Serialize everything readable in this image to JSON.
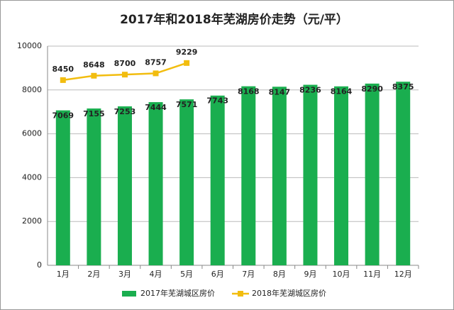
{
  "chart_data": {
    "type": "bar",
    "title": "2017年和2018年芜湖房价走势（元/平）",
    "categories": [
      "1月",
      "2月",
      "3月",
      "4月",
      "5月",
      "6月",
      "7月",
      "8月",
      "9月",
      "10月",
      "11月",
      "12月"
    ],
    "series": [
      {
        "name": "2017年芜湖城区房价",
        "type": "bar",
        "color": "#1aae4f",
        "values": [
          7069,
          7155,
          7253,
          7444,
          7571,
          7743,
          8168,
          8147,
          8236,
          8164,
          8290,
          8375
        ]
      },
      {
        "name": "2018年芜湖城区房价",
        "type": "line",
        "color": "#f2bd0f",
        "values": [
          8450,
          8648,
          8700,
          8757,
          9229,
          null,
          null,
          null,
          null,
          null,
          null,
          null
        ]
      }
    ],
    "ylim": [
      0,
      10000
    ],
    "yticks": [
      0,
      2000,
      4000,
      6000,
      8000,
      10000
    ],
    "grid": true,
    "legend": "bottom"
  }
}
